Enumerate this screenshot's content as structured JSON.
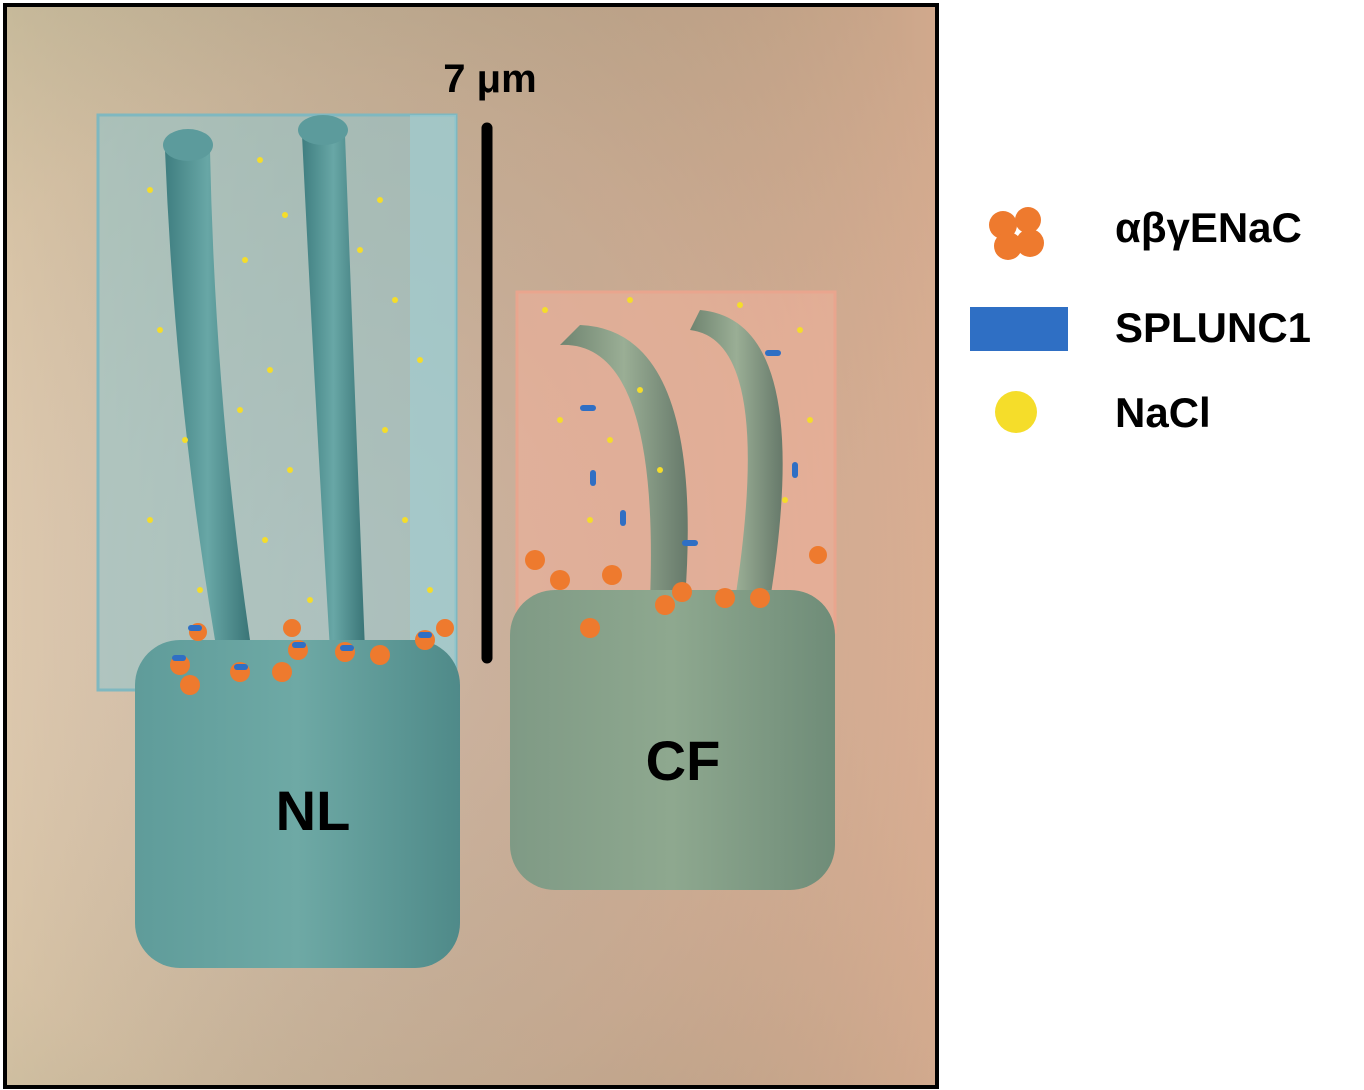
{
  "scale_bar": {
    "label": "7 μm"
  },
  "cells": [
    {
      "label": "NL"
    },
    {
      "label": "CF"
    }
  ],
  "legend": [
    {
      "label": "αβγENaC"
    },
    {
      "label": "SPLUNC1"
    },
    {
      "label": "NaCl"
    }
  ]
}
